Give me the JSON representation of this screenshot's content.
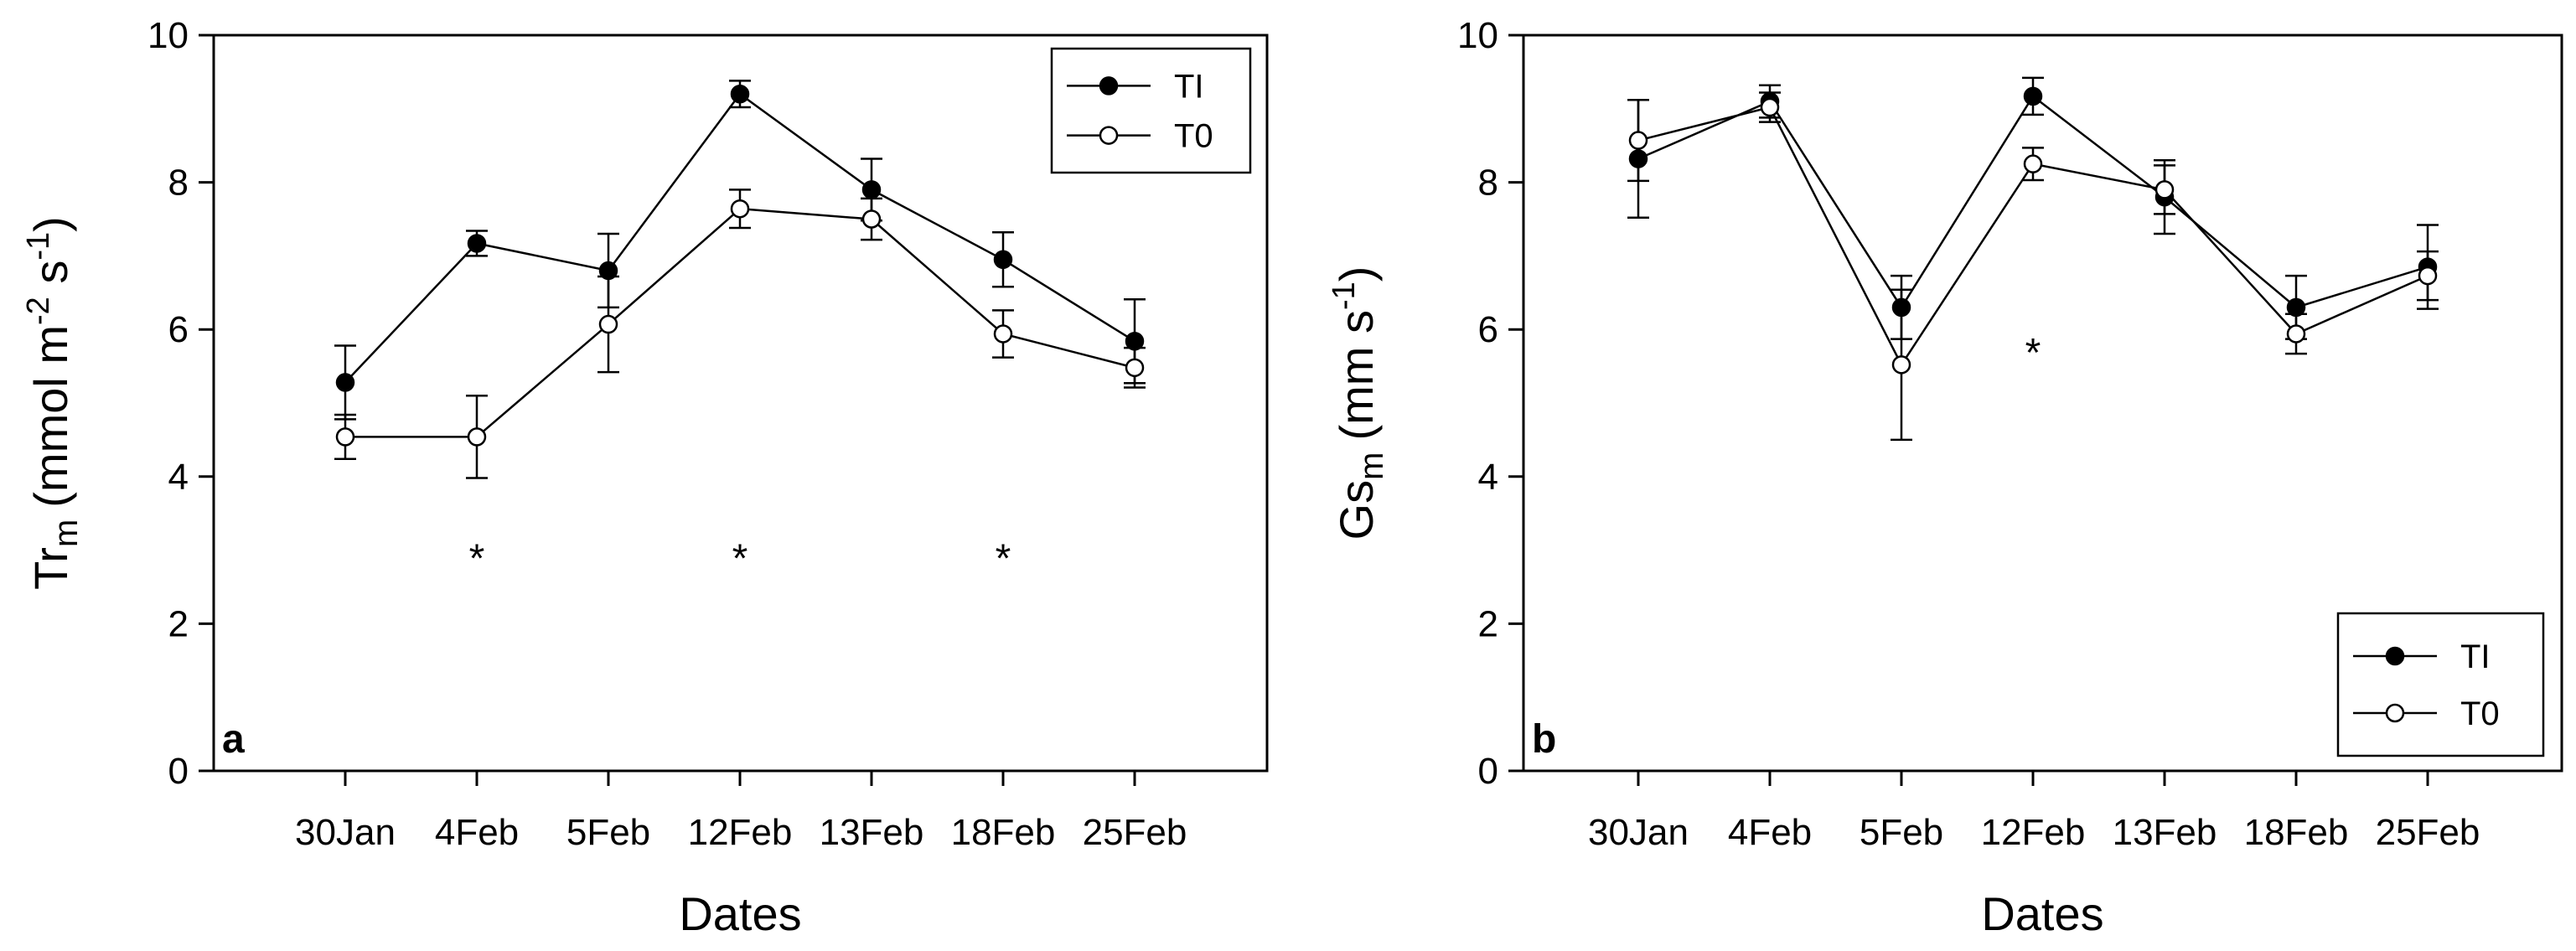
{
  "figure_panels": [
    "a",
    "b"
  ],
  "chart_data": [
    {
      "type": "line",
      "panel_label": "a",
      "categories": [
        "30Jan",
        "4Feb",
        "5Feb",
        "12Feb",
        "13Feb",
        "18Feb",
        "25Feb"
      ],
      "xlabel": "Dates",
      "ylabel": "Tr",
      "ylabel_sub": "m",
      "ylabel_unit": "(mmol m-2 s-1)",
      "ylabel_unit_parts": [
        "(mmol m",
        "-2",
        " s",
        "-1",
        ")"
      ],
      "ylim": [
        0,
        10
      ],
      "yticks": [
        0,
        2,
        4,
        6,
        8,
        10
      ],
      "ytick_labels": [
        "0",
        "2",
        "4",
        "6",
        "8",
        "10"
      ],
      "grid": false,
      "legend_position": "top-right",
      "series": [
        {
          "name": "TI",
          "marker": "filled-circle",
          "color": "#000000",
          "values": [
            5.28,
            7.17,
            6.8,
            9.2,
            7.9,
            6.95,
            5.84
          ],
          "errors": [
            0.5,
            0.17,
            0.5,
            0.18,
            0.42,
            0.37,
            0.57
          ]
        },
        {
          "name": "T0",
          "marker": "open-circle",
          "color": "#000000",
          "values": [
            4.54,
            4.54,
            6.07,
            7.64,
            7.5,
            5.94,
            5.48
          ],
          "errors": [
            0.3,
            0.56,
            0.65,
            0.26,
            0.28,
            0.32,
            0.27
          ]
        }
      ],
      "annotations": [
        {
          "category": "4Feb",
          "y": 3.0,
          "text": "*"
        },
        {
          "category": "12Feb",
          "y": 3.0,
          "text": "*"
        },
        {
          "category": "18Feb",
          "y": 3.0,
          "text": "*"
        }
      ]
    },
    {
      "type": "line",
      "panel_label": "b",
      "categories": [
        "30Jan",
        "4Feb",
        "5Feb",
        "12Feb",
        "13Feb",
        "18Feb",
        "25Feb"
      ],
      "xlabel": "Dates",
      "ylabel": "Gs",
      "ylabel_sub": "m",
      "ylabel_unit": "(mm s-1)",
      "ylabel_unit_parts": [
        "(mm s",
        "-1",
        ")"
      ],
      "ylim": [
        0,
        10
      ],
      "yticks": [
        0,
        2,
        4,
        6,
        8,
        10
      ],
      "ytick_labels": [
        "0",
        "2",
        "4",
        "6",
        "8",
        "10"
      ],
      "grid": false,
      "legend_position": "bottom-right",
      "series": [
        {
          "name": "TI",
          "marker": "filled-circle",
          "color": "#000000",
          "values": [
            8.32,
            9.1,
            6.3,
            9.17,
            7.8,
            6.3,
            6.85
          ],
          "errors": [
            0.8,
            0.22,
            0.43,
            0.25,
            0.5,
            0.43,
            0.57
          ]
        },
        {
          "name": "T0",
          "marker": "open-circle",
          "color": "#000000",
          "values": [
            8.57,
            9.02,
            5.52,
            8.25,
            7.9,
            5.94,
            6.73
          ],
          "errors": [
            0.55,
            0.2,
            1.02,
            0.22,
            0.33,
            0.27,
            0.33
          ]
        }
      ],
      "annotations": [
        {
          "category": "12Feb",
          "y": 5.8,
          "text": "*"
        }
      ]
    }
  ]
}
